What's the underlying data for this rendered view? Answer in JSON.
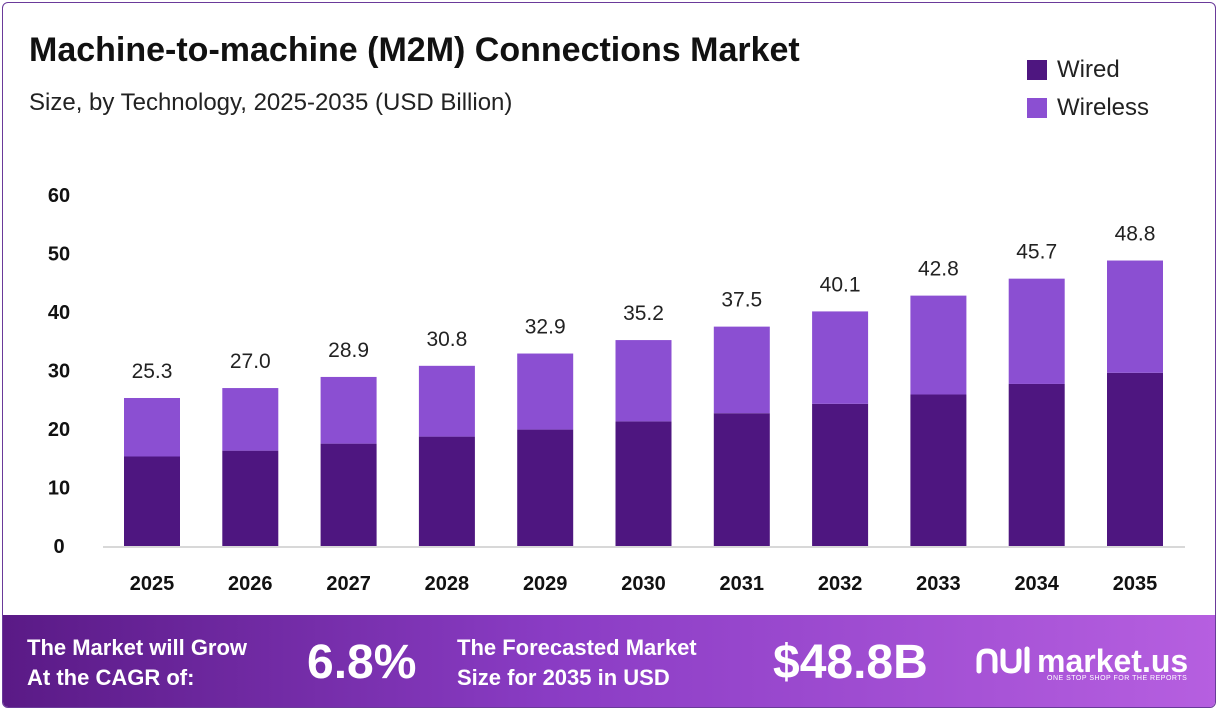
{
  "header": {
    "title": "Machine-to-machine (M2M) Connections Market",
    "subtitle": "Size, by Technology, 2025-2035 (USD Billion)"
  },
  "legend": [
    {
      "label": "Wired",
      "color": "#4e1680"
    },
    {
      "label": "Wireless",
      "color": "#8b4fd2"
    }
  ],
  "chart_data": {
    "type": "bar",
    "stacked": true,
    "categories": [
      "2025",
      "2026",
      "2027",
      "2028",
      "2029",
      "2030",
      "2031",
      "2032",
      "2033",
      "2034",
      "2035"
    ],
    "series": [
      {
        "name": "Wired",
        "color": "#4e1680",
        "values": [
          15.3,
          16.3,
          17.5,
          18.7,
          19.9,
          21.3,
          22.7,
          24.3,
          25.9,
          27.7,
          29.6
        ]
      },
      {
        "name": "Wireless",
        "color": "#8b4fd2",
        "values": [
          10.0,
          10.7,
          11.4,
          12.1,
          13.0,
          13.9,
          14.8,
          15.8,
          16.9,
          18.0,
          19.2
        ]
      }
    ],
    "totals": [
      "25.3",
      "27.0",
      "28.9",
      "30.8",
      "32.9",
      "35.2",
      "37.5",
      "40.1",
      "42.8",
      "45.7",
      "48.8"
    ],
    "yticks": [
      "0",
      "10",
      "20",
      "30",
      "40",
      "50",
      "60"
    ],
    "ylim": [
      0,
      60
    ],
    "grid": false,
    "legend_position": "top-right"
  },
  "footer": {
    "cagr_text_line1": "The Market will Grow",
    "cagr_text_line2": "At the CAGR of:",
    "cagr_value": "6.8%",
    "forecast_text_line1": "The Forecasted Market",
    "forecast_text_line2": "Size for 2035 in USD",
    "forecast_value": "$48.8B",
    "brand": "market.us",
    "brand_tagline": "ONE STOP SHOP FOR THE REPORTS"
  }
}
